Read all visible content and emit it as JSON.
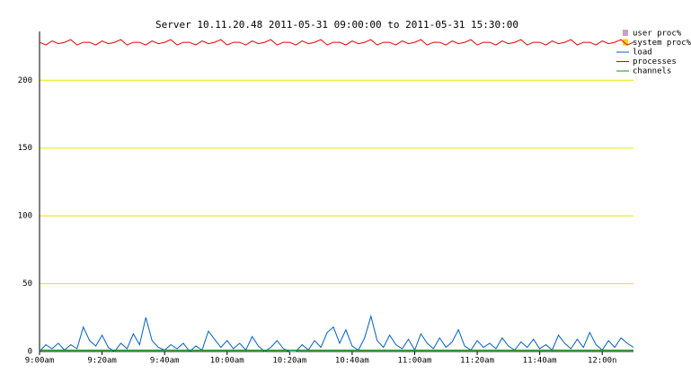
{
  "chart_data": {
    "type": "line",
    "title": "Server 10.11.20.48   2011-05-31 09:00:00 to 2011-05-31 15:30:00",
    "x": [
      0,
      2,
      4,
      6,
      8,
      10,
      12,
      14,
      16,
      18,
      20,
      22,
      24,
      26,
      28,
      30,
      32,
      34,
      36,
      38,
      40,
      42,
      44,
      46,
      48,
      50,
      52,
      54,
      56,
      58,
      60,
      62,
      64,
      66,
      68,
      70,
      72,
      74,
      76,
      78,
      80,
      82,
      84,
      86,
      88,
      90,
      92,
      94,
      96,
      98,
      100,
      102,
      104,
      106,
      108,
      110,
      112,
      114,
      116,
      118,
      120,
      122,
      124,
      126,
      128,
      130,
      132,
      134,
      136,
      138,
      140,
      142,
      144,
      146,
      148,
      150,
      152,
      154,
      156,
      158,
      160,
      162,
      164,
      166,
      168,
      170,
      172,
      174,
      176,
      178,
      180,
      182,
      184,
      186,
      188,
      190
    ],
    "xlim": [
      0,
      190
    ],
    "xticks": [
      {
        "value": 0,
        "label": "9:00am"
      },
      {
        "value": 20,
        "label": "9:20am"
      },
      {
        "value": 40,
        "label": "9:40am"
      },
      {
        "value": 60,
        "label": "10:00am"
      },
      {
        "value": 80,
        "label": "10:20am"
      },
      {
        "value": 100,
        "label": "10:40am"
      },
      {
        "value": 120,
        "label": "11:00am"
      },
      {
        "value": 140,
        "label": "11:20am"
      },
      {
        "value": 160,
        "label": "11:40am"
      },
      {
        "value": 180,
        "label": "12:00n"
      }
    ],
    "ylim": [
      0,
      236
    ],
    "yticks": [
      0,
      50,
      100,
      150,
      200
    ],
    "grid": true,
    "grid_color": "#e8e800",
    "series": [
      {
        "name": "user proc%",
        "color": "#c8a0c8",
        "values": [
          null,
          null,
          null,
          null,
          null,
          null,
          null,
          null,
          null,
          null,
          null,
          null,
          null,
          null,
          null,
          null,
          null,
          null,
          null,
          null,
          null,
          null,
          null,
          null,
          null,
          null,
          null,
          null,
          null,
          null,
          null,
          null,
          null,
          null,
          null,
          null,
          null,
          null,
          null,
          null,
          null,
          null,
          null,
          null,
          null,
          null,
          null,
          null,
          null,
          null,
          null,
          null,
          null,
          null,
          null,
          null,
          null,
          null,
          null,
          null,
          null,
          null,
          null,
          null,
          null,
          null,
          null,
          null,
          null,
          null,
          null,
          null,
          null,
          null,
          null,
          null,
          null,
          null,
          null,
          null,
          null,
          null,
          null,
          null,
          null,
          null,
          null,
          null,
          null,
          null,
          null,
          null,
          null,
          null,
          null,
          null
        ]
      },
      {
        "name": "system proc%",
        "color": "#ffd000",
        "values": [
          null,
          null,
          null,
          null,
          null,
          null,
          null,
          null,
          null,
          null,
          null,
          null,
          null,
          null,
          null,
          null,
          null,
          null,
          null,
          null,
          null,
          null,
          null,
          null,
          null,
          null,
          null,
          null,
          null,
          null,
          null,
          null,
          null,
          null,
          null,
          null,
          null,
          null,
          null,
          null,
          null,
          null,
          null,
          null,
          null,
          null,
          null,
          null,
          null,
          null,
          null,
          null,
          null,
          null,
          null,
          null,
          null,
          null,
          null,
          null,
          null,
          null,
          null,
          null,
          null,
          null,
          null,
          null,
          null,
          null,
          null,
          null,
          null,
          null,
          null,
          null,
          null,
          null,
          null,
          null,
          null,
          null,
          null,
          null,
          null,
          null,
          null,
          null,
          null,
          null,
          null,
          null,
          null,
          null,
          null,
          null
        ]
      },
      {
        "name": "load",
        "color": "#0060c0",
        "values": [
          0,
          5,
          2,
          6,
          1,
          5,
          2,
          18,
          8,
          4,
          12,
          3,
          0,
          6,
          2,
          13,
          5,
          25,
          8,
          3,
          1,
          5,
          2,
          6,
          0,
          4,
          1,
          15,
          9,
          3,
          8,
          2,
          6,
          1,
          11,
          4,
          0,
          3,
          8,
          2,
          0,
          0,
          5,
          1,
          8,
          3,
          14,
          18,
          6,
          16,
          4,
          1,
          10,
          26,
          8,
          3,
          12,
          5,
          2,
          9,
          1,
          13,
          6,
          2,
          10,
          3,
          7,
          16,
          4,
          1,
          8,
          3,
          6,
          2,
          10,
          4,
          1,
          7,
          3,
          9,
          2,
          5,
          1,
          12,
          6,
          2,
          9,
          3,
          14,
          5,
          1,
          8,
          3,
          10,
          6,
          3
        ]
      },
      {
        "name": "processes",
        "color": "#e00000",
        "values": [
          228,
          226,
          229,
          227,
          228,
          230,
          226,
          228,
          228,
          226,
          229,
          227,
          228,
          230,
          226,
          228,
          228,
          226,
          229,
          227,
          228,
          230,
          226,
          228,
          228,
          226,
          229,
          227,
          228,
          230,
          226,
          228,
          228,
          226,
          229,
          227,
          228,
          230,
          226,
          228,
          228,
          226,
          229,
          227,
          228,
          230,
          226,
          228,
          228,
          226,
          229,
          227,
          228,
          230,
          226,
          228,
          228,
          226,
          229,
          227,
          228,
          230,
          226,
          228,
          228,
          226,
          229,
          227,
          228,
          230,
          226,
          228,
          228,
          226,
          229,
          227,
          228,
          230,
          226,
          228,
          228,
          226,
          229,
          227,
          228,
          230,
          226,
          228,
          228,
          226,
          229,
          227,
          228,
          230,
          226,
          228
        ]
      },
      {
        "name": "channels",
        "color": "#00a000",
        "values": [
          1,
          1,
          1,
          1,
          1,
          1,
          1,
          1,
          1,
          1,
          1,
          1,
          1,
          1,
          1,
          1,
          1,
          1,
          1,
          1,
          1,
          1,
          1,
          1,
          1,
          1,
          1,
          1,
          1,
          1,
          1,
          1,
          1,
          1,
          1,
          1,
          1,
          1,
          1,
          1,
          1,
          1,
          1,
          1,
          1,
          1,
          1,
          1,
          1,
          1,
          1,
          1,
          1,
          1,
          1,
          1,
          1,
          1,
          1,
          1,
          1,
          1,
          1,
          1,
          1,
          1,
          1,
          1,
          1,
          1,
          1,
          1,
          1,
          1,
          1,
          1,
          1,
          1,
          1,
          1,
          1,
          1,
          1,
          1,
          1,
          1,
          1,
          1,
          1,
          1,
          1,
          1,
          1,
          1,
          1,
          1
        ]
      }
    ]
  }
}
